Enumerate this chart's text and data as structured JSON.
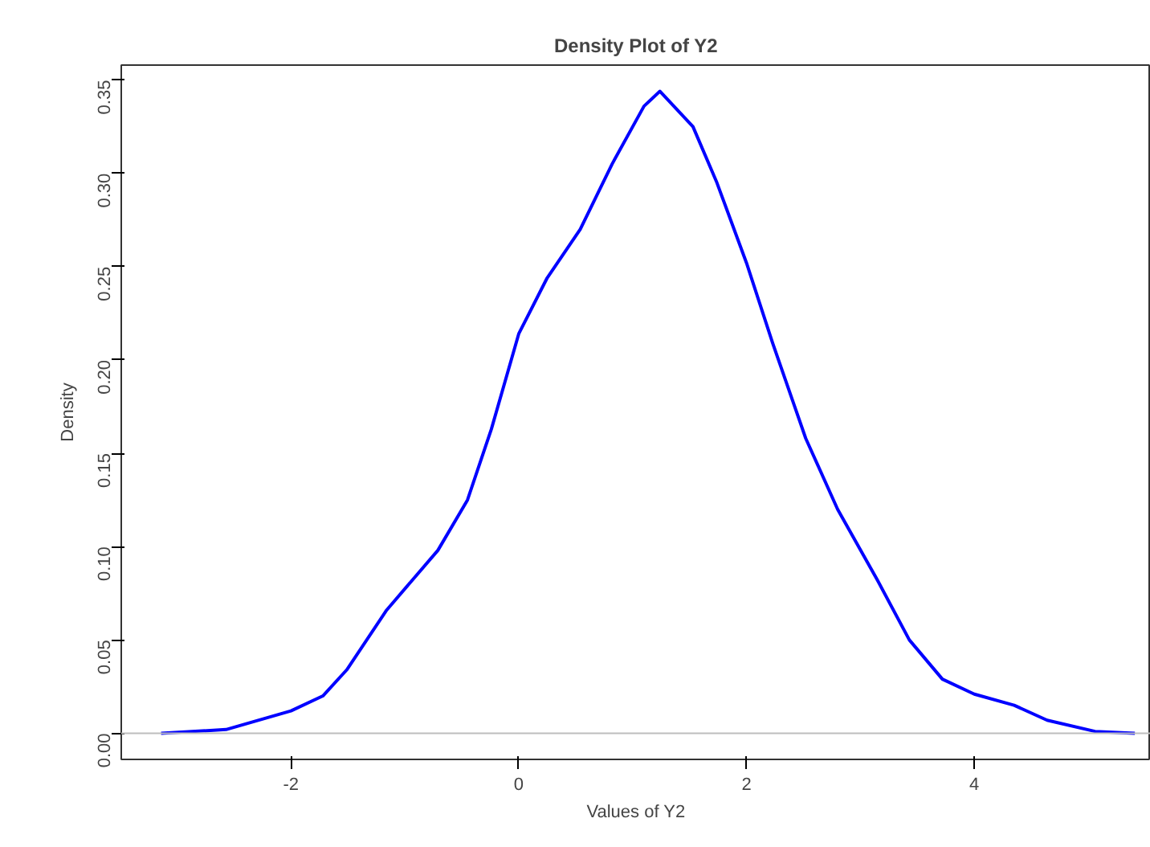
{
  "chart_data": {
    "type": "line",
    "title": "Density Plot of Y2",
    "xlabel": "Values of Y2",
    "ylabel": "Density",
    "x": [
      -3.14,
      -2.57,
      -2.0,
      -1.72,
      -1.51,
      -1.16,
      -0.71,
      -0.45,
      -0.24,
      0.0,
      0.25,
      0.54,
      0.82,
      1.1,
      1.24,
      1.53,
      1.74,
      2.0,
      2.23,
      2.52,
      2.8,
      3.15,
      3.43,
      3.72,
      4.0,
      4.35,
      4.64,
      5.06,
      5.41
    ],
    "series": [
      {
        "color": "#0000ff",
        "values": [
          0.0,
          0.002,
          0.012,
          0.02,
          0.034,
          0.066,
          0.098,
          0.125,
          0.163,
          0.214,
          0.244,
          0.27,
          0.305,
          0.336,
          0.344,
          0.325,
          0.295,
          0.252,
          0.209,
          0.158,
          0.12,
          0.082,
          0.05,
          0.029,
          0.021,
          0.015,
          0.007,
          0.001,
          0.0
        ]
      }
    ],
    "xlim": [
      -3.49,
      5.55
    ],
    "ylim": [
      -0.014,
      0.358
    ],
    "xticks": [
      -2,
      0,
      2,
      4
    ],
    "yticks": [
      {
        "value": 0,
        "label": "0.00"
      },
      {
        "value": 0.05,
        "label": "0.05"
      },
      {
        "value": 0.1,
        "label": "0.10"
      },
      {
        "value": 0.15,
        "label": "0.15"
      },
      {
        "value": 0.2,
        "label": "0.20"
      },
      {
        "value": 0.25,
        "label": "0.25"
      },
      {
        "value": 0.3,
        "label": "0.30"
      },
      {
        "value": 0.35,
        "label": "0.35"
      }
    ],
    "ref_lines": [
      {
        "axis": "y",
        "value": 0,
        "color": "#bebebe"
      }
    ],
    "grid": false,
    "marker": "none",
    "line_style": "solid"
  }
}
